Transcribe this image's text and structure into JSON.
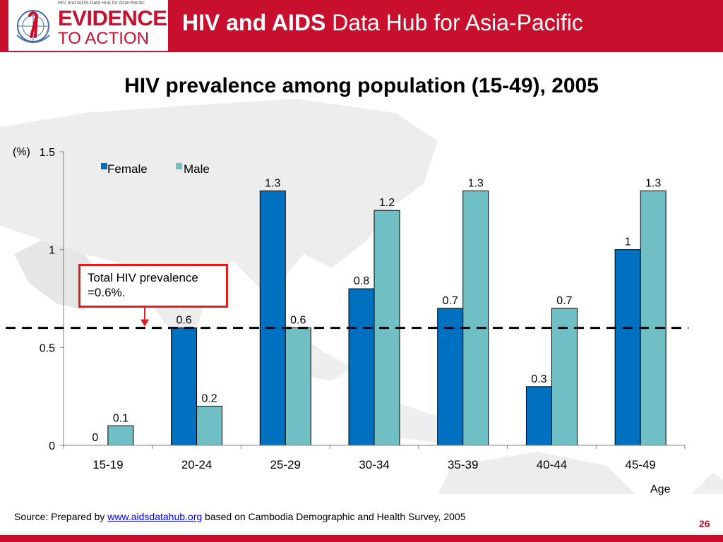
{
  "header": {
    "title_bold": "HIV and AIDS",
    "title_rest": " Data Hub for Asia-Pacific",
    "logo_sub": "HIV and AIDS Data Hub for Asia-Pacific",
    "logo_line1": "EVIDENCE",
    "logo_line2": "TO ACTION"
  },
  "slide": {
    "title": "HIV prevalence among population (15-49), 2005",
    "annotation": "Total HIV prevalence =0.6%.",
    "source_prefix": "Source: Prepared by ",
    "source_link": "www.aidsdatahub.org",
    "source_suffix": "  based on Cambodia Demographic and Health Survey, 2005",
    "page_number": "26"
  },
  "colors": {
    "brand_red": "#c8102e",
    "female": "#0070c0",
    "male": "#70bfc4",
    "annotation_border": "#e31c1c"
  },
  "chart_data": {
    "type": "bar",
    "title": "HIV prevalence among population (15-49), 2005",
    "categories": [
      "15-19",
      "20-24",
      "25-29",
      "30-34",
      "35-39",
      "40-44",
      "45-49"
    ],
    "series": [
      {
        "name": "Female",
        "values": [
          0,
          0.6,
          1.3,
          0.8,
          0.7,
          0.3,
          1
        ],
        "labels": [
          "0",
          "0.6",
          "1.3",
          "0.8",
          "0.7",
          "0.3",
          "1"
        ]
      },
      {
        "name": "Male",
        "values": [
          0.1,
          0.2,
          0.6,
          1.2,
          1.3,
          0.7,
          1.3
        ],
        "labels": [
          "0.1",
          "0.2",
          "0.6",
          "1.2",
          "1.3",
          "0.7",
          "1.3"
        ]
      }
    ],
    "ylabel": "(%)",
    "xlabel": "Age",
    "ylim": [
      0,
      1.5
    ],
    "yticks": [
      0,
      0.5,
      1,
      1.5
    ],
    "ytick_labels": [
      "0",
      "0.5",
      "1",
      "1.5"
    ],
    "reference_line": 0.6,
    "legend": "top-left",
    "grid": false
  }
}
